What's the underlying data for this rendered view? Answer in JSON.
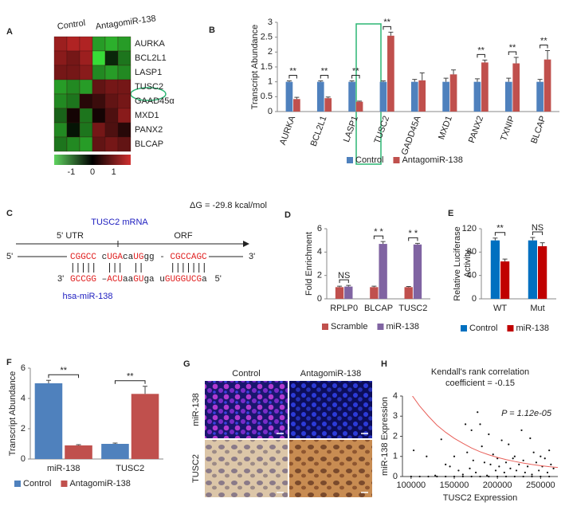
{
  "panel_labels": [
    "A",
    "B",
    "C",
    "D",
    "E",
    "F",
    "G",
    "H"
  ],
  "chart_data": [
    {
      "type": "heatmap",
      "column_groups": [
        "Control",
        "AntagomiR-138"
      ],
      "rows": [
        "AURKA",
        "BCL2L1",
        "LASP1",
        "TUSC2",
        "GAAD45α",
        "MXD1",
        "PANX2",
        "BLCAP"
      ],
      "values": [
        [
          0.8,
          0.9,
          0.9,
          -0.8,
          -0.9,
          -0.8
        ],
        [
          0.7,
          0.6,
          0.8,
          -1.6,
          -0.2,
          -0.6
        ],
        [
          0.6,
          0.6,
          0.7,
          -0.7,
          -0.8,
          -0.7
        ],
        [
          -0.8,
          -0.7,
          -0.8,
          0.5,
          0.6,
          0.6
        ],
        [
          -0.7,
          -0.6,
          0.2,
          0.3,
          0.5,
          0.6
        ],
        [
          -0.5,
          0.1,
          -0.6,
          0.1,
          0.4,
          0.7
        ],
        [
          -0.7,
          -0.1,
          -0.6,
          0.6,
          0.4,
          0.2
        ],
        [
          -0.6,
          -0.7,
          -0.8,
          0.5,
          0.6,
          0.5
        ]
      ],
      "clim": [
        -1.8,
        1.8
      ],
      "colorbar_ticks": [
        -1,
        0,
        1
      ]
    },
    {
      "type": "bar",
      "ylabel": "Transcript Abundance",
      "categories": [
        "AURKA",
        "BCL2L1",
        "LASP1",
        "TUSC2",
        "GADD45A",
        "MXD1",
        "PANX2",
        "TXNIP",
        "BLCAP"
      ],
      "series": [
        {
          "name": "Control",
          "color": "#4f81bd",
          "values": [
            1,
            1,
            1,
            1,
            1,
            1,
            1,
            1,
            1
          ],
          "errors": [
            0.03,
            0.03,
            0.03,
            0.03,
            0.08,
            0.12,
            0.1,
            0.12,
            0.08
          ]
        },
        {
          "name": "AntagomiR-138",
          "color": "#c0504d",
          "values": [
            0.42,
            0.45,
            0.33,
            2.55,
            1.05,
            1.25,
            1.65,
            1.62,
            1.75
          ],
          "errors": [
            0.06,
            0.04,
            0.02,
            0.12,
            0.25,
            0.15,
            0.08,
            0.2,
            0.3
          ]
        }
      ],
      "significance": [
        "**",
        "**",
        "**",
        "**",
        null,
        null,
        "**",
        "**",
        "**"
      ],
      "ylim": [
        0,
        3
      ],
      "yticks": [
        0,
        0.5,
        1,
        1.5,
        2,
        2.5,
        3
      ]
    },
    {
      "type": "bar",
      "ylabel": "Fold Enrichment",
      "categories": [
        "RPLP0",
        "BLCAP",
        "TUSC2"
      ],
      "series": [
        {
          "name": "Scramble",
          "color": "#c0504d",
          "values": [
            1,
            1,
            1
          ],
          "errors": [
            0.08,
            0.08,
            0.06
          ]
        },
        {
          "name": "miR-138",
          "color": "#8064a2",
          "values": [
            1.05,
            4.7,
            4.65
          ],
          "errors": [
            0.1,
            0.2,
            0.1
          ]
        }
      ],
      "significance": [
        "NS",
        "* *",
        "* *"
      ],
      "ylim": [
        0,
        6
      ],
      "yticks": [
        0,
        2,
        4,
        6
      ]
    },
    {
      "type": "bar",
      "ylabel": [
        "Relative Luciferase",
        "Activity"
      ],
      "categories": [
        "WT",
        "Mut"
      ],
      "series": [
        {
          "name": "Control",
          "color": "#0070c0",
          "values": [
            100,
            100
          ],
          "errors": [
            4,
            5
          ]
        },
        {
          "name": "miR-138",
          "color": "#c00000",
          "values": [
            64,
            90
          ],
          "errors": [
            4,
            6
          ]
        }
      ],
      "significance": [
        "**",
        "NS"
      ],
      "ylim": [
        0,
        120
      ],
      "yticks": [
        0,
        40,
        80,
        120
      ]
    },
    {
      "type": "bar",
      "ylabel": "Transcript Abundance",
      "categories": [
        "miR-138",
        "TUSC2"
      ],
      "series": [
        {
          "name": "Control",
          "color": "#4f81bd",
          "values": [
            5,
            1
          ],
          "errors": [
            0.2,
            0.05
          ]
        },
        {
          "name": "AntagomiR-138",
          "color": "#c0504d",
          "values": [
            0.9,
            4.3
          ],
          "errors": [
            0.05,
            0.5
          ]
        }
      ],
      "significance": [
        "**",
        "**"
      ],
      "ylim": [
        0,
        6
      ],
      "yticks": [
        0,
        2,
        4,
        6
      ]
    },
    {
      "type": "scatter",
      "title": [
        "Kendall's rank correlation",
        "coefficient = -0.15"
      ],
      "annotation": "P = 1.12e-05",
      "xlabel": "TUSC2 Expression",
      "ylabel": "miR-138 Expression",
      "color": "#111111",
      "x": [
        103000,
        118000,
        128000,
        135000,
        140000,
        145000,
        150000,
        155000,
        160000,
        163000,
        165000,
        168000,
        170000,
        172000,
        175000,
        177000,
        180000,
        182000,
        185000,
        188000,
        190000,
        192000,
        195000,
        198000,
        200000,
        202000,
        205000,
        208000,
        210000,
        213000,
        215000,
        218000,
        220000,
        222000,
        225000,
        228000,
        230000,
        232000,
        235000,
        238000,
        240000,
        242000,
        245000,
        248000,
        250000,
        252000,
        255000,
        258000,
        260000,
        262000,
        265000,
        100000,
        110000,
        120000,
        130000,
        140000,
        150000,
        160000,
        170000,
        180000,
        190000,
        200000,
        210000,
        220000,
        230000,
        240000,
        250000,
        260000
      ],
      "values": [
        1.3,
        1.0,
        0.05,
        1.85,
        0.6,
        0.5,
        1.0,
        0.3,
        0.1,
        2.6,
        1.2,
        0.4,
        2.3,
        0.8,
        0.2,
        3.2,
        2.6,
        1.5,
        0.7,
        0.05,
        2.1,
        0.6,
        1.1,
        0.3,
        0.9,
        0.5,
        1.8,
        0.2,
        0.7,
        1.6,
        0.4,
        0.9,
        1.0,
        0.3,
        0.6,
        2.3,
        0.8,
        0.2,
        0.5,
        1.9,
        0.1,
        1.2,
        0.7,
        0.3,
        1.0,
        0.5,
        0.9,
        0.2,
        1.3,
        0.6,
        0.4,
        0,
        0,
        0,
        0,
        0,
        0,
        0,
        0,
        0,
        0,
        0,
        0,
        0,
        0,
        0,
        0,
        0
      ],
      "xlim": [
        90000,
        270000
      ],
      "xticks": [
        100000,
        150000,
        200000,
        250000
      ],
      "ylim": [
        0,
        4
      ],
      "yticks": [
        0,
        1,
        2,
        3,
        4
      ],
      "trend": {
        "color": "#e8605a",
        "x": [
          100000,
          110000,
          120000,
          130000,
          140000,
          150000,
          160000,
          170000,
          180000,
          190000,
          200000,
          210000,
          220000,
          230000,
          240000,
          250000,
          260000,
          270000
        ],
        "values": [
          4.1,
          3.5,
          3.0,
          2.55,
          2.2,
          1.9,
          1.65,
          1.42,
          1.23,
          1.08,
          0.95,
          0.84,
          0.75,
          0.67,
          0.6,
          0.54,
          0.49,
          0.45
        ]
      }
    }
  ],
  "sequence": {
    "delta_g": "ΔG = -29.8 kcal/mol",
    "mrna_label": "TUSC2 mRNA",
    "utr_label": "5' UTR",
    "orf_label": "ORF",
    "mirna_label": "hsa-miR-138",
    "five_prime": "5'",
    "three_prime": "3'",
    "mrna": [
      {
        "text": "CGGCC",
        "color": "#e02020"
      },
      {
        "text": " c",
        "color": "#222222"
      },
      {
        "text": "UGA",
        "color": "#e02020"
      },
      {
        "text": "ca",
        "color": "#222222"
      },
      {
        "text": "UG",
        "color": "#e02020"
      },
      {
        "text": "gg - ",
        "color": "#222222"
      },
      {
        "text": "CGCCAGC",
        "color": "#e02020"
      }
    ],
    "mirna": [
      {
        "text": "GCCGG",
        "color": "#e02020"
      },
      {
        "text": " –",
        "color": "#222222"
      },
      {
        "text": "ACU",
        "color": "#e02020"
      },
      {
        "text": "aa",
        "color": "#222222"
      },
      {
        "text": "GU",
        "color": "#e02020"
      },
      {
        "text": "ga u",
        "color": "#222222"
      },
      {
        "text": "GUGGUCG",
        "color": "#e02020"
      },
      {
        "text": "a",
        "color": "#222222"
      }
    ]
  },
  "images": {
    "columns": [
      "Control",
      "AntagomiR-138"
    ],
    "rows": [
      "miR-138",
      "TUSC2"
    ]
  }
}
